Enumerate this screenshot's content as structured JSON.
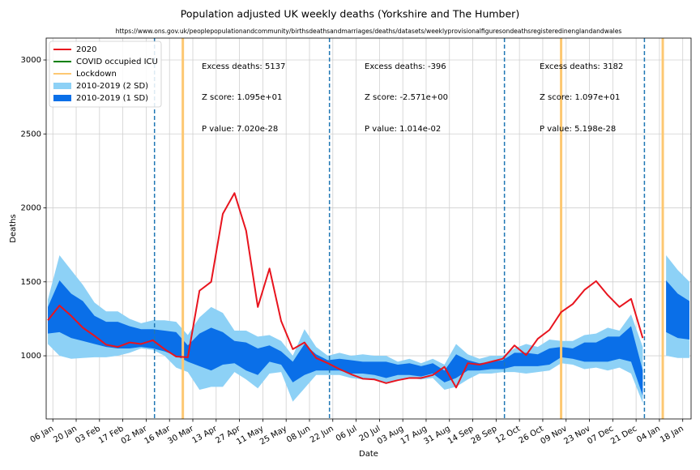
{
  "chart_data": {
    "type": "band-line",
    "title": "Population adjusted UK weekly deaths (Yorkshire and The Humber)",
    "subtitle": "https://www.ons.gov.uk/peoplepopulationandcommunity/birthsdeathsandmarriages/deaths/datasets/weeklyprovisionalfiguresondeathsregisteredinenglandandwales",
    "xlabel": "Date",
    "ylabel": "Deaths",
    "x": [
      "03 Jan",
      "10 Jan",
      "17 Jan",
      "24 Jan",
      "31 Jan",
      "07 Feb",
      "14 Feb",
      "21 Feb",
      "28 Feb",
      "06 Mar",
      "13 Mar",
      "20 Mar",
      "27 Mar",
      "03 Apr",
      "10 Apr",
      "17 Apr",
      "24 Apr",
      "01 May",
      "08 May",
      "15 May",
      "22 May",
      "29 May",
      "05 Jun",
      "12 Jun",
      "19 Jun",
      "26 Jun",
      "03 Jul",
      "10 Jul",
      "17 Jul",
      "24 Jul",
      "31 Jul",
      "07 Aug",
      "14 Aug",
      "21 Aug",
      "28 Aug",
      "04 Sep",
      "11 Sep",
      "18 Sep",
      "25 Sep",
      "02 Oct",
      "09 Oct",
      "16 Oct",
      "23 Oct",
      "30 Oct",
      "06 Nov",
      "13 Nov",
      "20 Nov",
      "27 Nov",
      "04 Dec",
      "11 Dec",
      "18 Dec",
      "25 Dec",
      "01 Jan",
      "08 Jan",
      "15 Jan",
      "22 Jan"
    ],
    "xlim": [
      "02 Jan",
      "23 Jan"
    ],
    "xticks": [
      "06 Jan",
      "20 Jan",
      "03 Feb",
      "17 Feb",
      "02 Mar",
      "16 Mar",
      "30 Mar",
      "13 Apr",
      "27 Apr",
      "11 May",
      "25 May",
      "08 Jun",
      "22 Jun",
      "06 Jul",
      "20 Jul",
      "03 Aug",
      "17 Aug",
      "31 Aug",
      "14 Sep",
      "28 Sep",
      "12 Oct",
      "26 Oct",
      "09 Nov",
      "23 Nov",
      "07 Dec",
      "21 Dec",
      "04 Jan",
      "18 Jan"
    ],
    "ylim": [
      573,
      3148
    ],
    "yticks": [
      1000,
      1500,
      2000,
      2500,
      3000
    ],
    "grid": true,
    "legend": "upper left",
    "series": [
      {
        "name": "2020",
        "color": "#e8141e",
        "values": [
          1240,
          1340,
          1270,
          1190,
          1135,
          1075,
          1060,
          1090,
          1080,
          1105,
          1045,
          995,
          990,
          1440,
          1500,
          1960,
          2100,
          1845,
          1330,
          1590,
          1235,
          1045,
          1090,
          985,
          950,
          910,
          875,
          845,
          840,
          815,
          835,
          850,
          850,
          870,
          925,
          785,
          950,
          940,
          960,
          980,
          1070,
          1005,
          1115,
          1175,
          1295,
          1350,
          1445,
          1505,
          1410,
          1330,
          1385,
          1120,
          null,
          null,
          null,
          null
        ]
      },
      {
        "name": "COVID occupied ICU",
        "color": "#008000",
        "values": [
          null,
          null,
          null,
          null,
          null,
          null,
          null,
          null,
          null,
          null,
          null,
          null,
          null,
          null,
          null,
          null,
          null,
          null,
          null,
          null,
          null,
          null,
          null,
          null,
          null,
          null,
          null,
          null,
          null,
          null,
          null,
          null,
          null,
          null,
          null,
          null,
          null,
          null,
          null,
          null,
          null,
          null,
          null,
          null,
          null,
          null,
          null,
          null,
          null,
          null,
          null,
          null,
          null,
          null,
          null,
          null
        ]
      }
    ],
    "lockdowns": {
      "name": "Lockdown",
      "color": "#fdc872",
      "x": [
        "24 Mar",
        "06 Nov",
        "06 Jan"
      ]
    },
    "period_lines": {
      "color": "#1f77b4",
      "x": [
        "07 Mar",
        "20 Jun",
        "03 Oct",
        "26 Dec"
      ]
    },
    "bands": [
      {
        "name": "2010-2019 (2 SD)",
        "color": "#8dd1f6",
        "upper": [
          1380,
          1680,
          1580,
          1480,
          1360,
          1300,
          1300,
          1250,
          1220,
          1240,
          1240,
          1230,
          1140,
          1260,
          1330,
          1290,
          1170,
          1170,
          1130,
          1140,
          1100,
          1000,
          1180,
          1060,
          1000,
          1020,
          1000,
          1010,
          1000,
          1000,
          960,
          980,
          950,
          980,
          940,
          1080,
          1010,
          980,
          1000,
          1000,
          1050,
          1080,
          1060,
          1110,
          1100,
          1100,
          1140,
          1150,
          1190,
          1170,
          1280,
          1060,
          null,
          1680,
          1580,
          1500
        ],
        "lower": [
          1080,
          1000,
          980,
          985,
          990,
          990,
          1000,
          1020,
          1050,
          1040,
          1000,
          920,
          890,
          770,
          790,
          790,
          890,
          840,
          780,
          880,
          890,
          690,
          780,
          870,
          870,
          870,
          850,
          840,
          840,
          810,
          840,
          850,
          840,
          850,
          770,
          790,
          840,
          880,
          880,
          890,
          890,
          880,
          890,
          900,
          950,
          940,
          910,
          920,
          900,
          920,
          880,
          680,
          null,
          1000,
          985,
          985
        ]
      },
      {
        "name": "2010-2019 (1 SD)",
        "color": "#0a6fe8",
        "upper": [
          1330,
          1510,
          1420,
          1370,
          1270,
          1230,
          1230,
          1200,
          1180,
          1180,
          1170,
          1160,
          1070,
          1150,
          1190,
          1160,
          1100,
          1090,
          1050,
          1070,
          1030,
          960,
          1080,
          1010,
          970,
          980,
          970,
          960,
          960,
          960,
          940,
          950,
          930,
          950,
          900,
          1010,
          970,
          950,
          960,
          970,
          1020,
          1020,
          1010,
          1050,
          1060,
          1050,
          1090,
          1090,
          1130,
          1130,
          1200,
          900,
          null,
          1510,
          1420,
          1370
        ],
        "lower": [
          1150,
          1160,
          1120,
          1100,
          1080,
          1060,
          1050,
          1050,
          1060,
          1050,
          1030,
          1000,
          960,
          930,
          900,
          940,
          950,
          900,
          870,
          960,
          940,
          820,
          870,
          900,
          900,
          900,
          880,
          880,
          870,
          850,
          870,
          870,
          860,
          880,
          820,
          850,
          900,
          900,
          910,
          910,
          930,
          930,
          930,
          940,
          990,
          980,
          960,
          960,
          960,
          980,
          960,
          730,
          null,
          1160,
          1120,
          1110
        ]
      }
    ],
    "annotations": [
      [
        "Excess deaths: 5137",
        "Z score: 1.095e+01",
        "P value: 7.020e-28"
      ],
      [
        "Excess deaths: -396",
        "Z score: -2.571e+00",
        "P value: 1.014e-02"
      ],
      [
        "Excess deaths: 3182",
        "Z score: 1.097e+01",
        "P value: 5.198e-28"
      ]
    ]
  }
}
